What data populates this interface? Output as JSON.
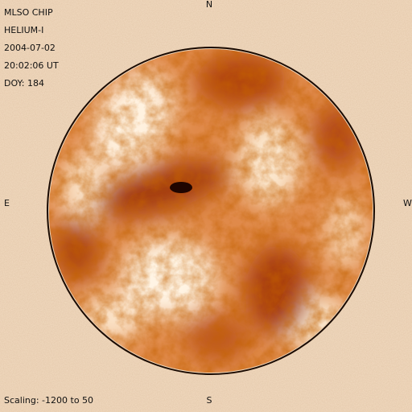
{
  "header": {
    "lines": [
      "MLSO CHIP",
      "HELIUM-I",
      "2004-07-02",
      "20:02:06 UT",
      "DOY: 184"
    ]
  },
  "compass": {
    "north": "N",
    "south": "S",
    "east": "E",
    "west": "W"
  },
  "footer": {
    "scaling": "Scaling: -1200 to 50"
  }
}
